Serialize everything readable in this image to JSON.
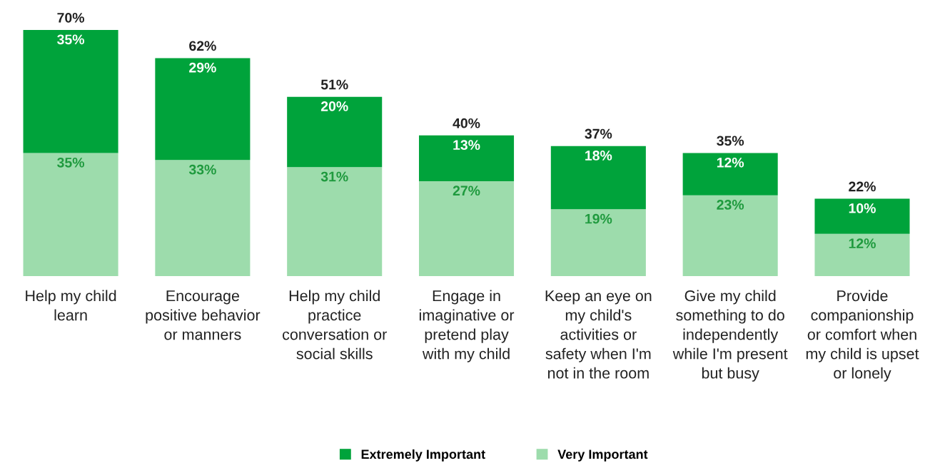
{
  "chart_data": {
    "type": "bar",
    "stacked": true,
    "categories": [
      "Help my child\nlearn",
      "Encourage\npositive behavior\nor manners",
      "Help my child\npractice\nconversation or\nsocial skills",
      "Engage in\nimaginative or\npretend play\nwith my child",
      "Keep an eye on\nmy child's\nactivities or\nsafety when I'm\nnot in the room",
      "Give my child\nsomething to do\nindependently\nwhile I'm present\nbut busy",
      "Provide\ncompanionship\nor comfort when\nmy child is upset\nor lonely"
    ],
    "series": [
      {
        "name": "Very Important",
        "color": "#9ddcac",
        "values": [
          35,
          33,
          31,
          27,
          19,
          23,
          12
        ],
        "value_labels": [
          "35%",
          "33%",
          "31%",
          "27%",
          "19%",
          "23%",
          "12%"
        ]
      },
      {
        "name": "Extremely Important",
        "color": "#00a33b",
        "values": [
          35,
          29,
          20,
          13,
          18,
          12,
          10
        ],
        "value_labels": [
          "35%",
          "29%",
          "20%",
          "13%",
          "18%",
          "12%",
          "10%"
        ]
      }
    ],
    "totals": [
      "70%",
      "62%",
      "51%",
      "40%",
      "37%",
      "35%",
      "22%"
    ],
    "legend": "bottom",
    "grid": false
  }
}
